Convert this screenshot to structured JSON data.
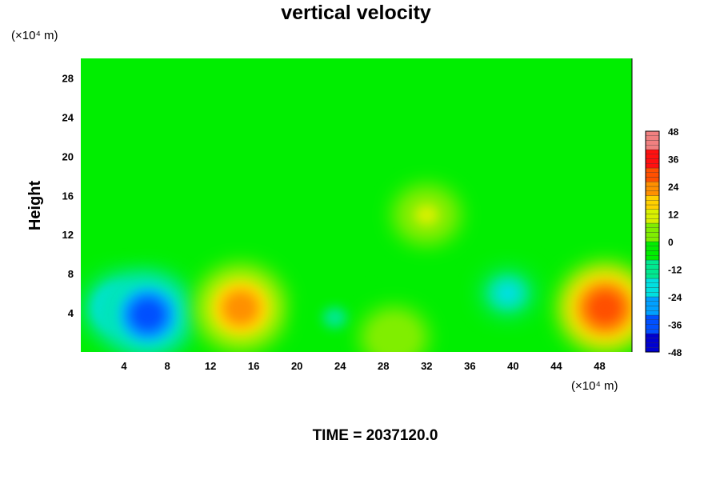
{
  "chart_data": {
    "type": "heatmap",
    "title": "vertical velocity",
    "xlabel": "",
    "ylabel": "Height",
    "x_unit_label": "(×10⁴ m)",
    "y_unit_label": "(×10⁴ m)",
    "xlim": [
      0,
      51
    ],
    "ylim": [
      0,
      30
    ],
    "x_ticks": [
      4,
      8,
      12,
      16,
      20,
      24,
      28,
      32,
      36,
      40,
      44,
      48
    ],
    "y_ticks": [
      4,
      8,
      12,
      16,
      20,
      24,
      28
    ],
    "colorbar": {
      "range": [
        -48,
        48
      ],
      "ticks": [
        48,
        36,
        24,
        12,
        0,
        -12,
        -24,
        -36,
        -48
      ]
    },
    "grid": false,
    "features": [
      {
        "x": 3.5,
        "y": 4.5,
        "value": -20
      },
      {
        "x": 6.2,
        "y": 3.8,
        "value": -34
      },
      {
        "x": 14.8,
        "y": 4.5,
        "value": 24
      },
      {
        "x": 23.5,
        "y": 3.5,
        "value": -8
      },
      {
        "x": 29.0,
        "y": 1.5,
        "value": 8
      },
      {
        "x": 32.0,
        "y": 14.0,
        "value": 10
      },
      {
        "x": 39.5,
        "y": 6.0,
        "value": -18
      },
      {
        "x": 48.5,
        "y": 4.5,
        "value": 28
      }
    ],
    "footer": "TIME = 2037120.0"
  }
}
